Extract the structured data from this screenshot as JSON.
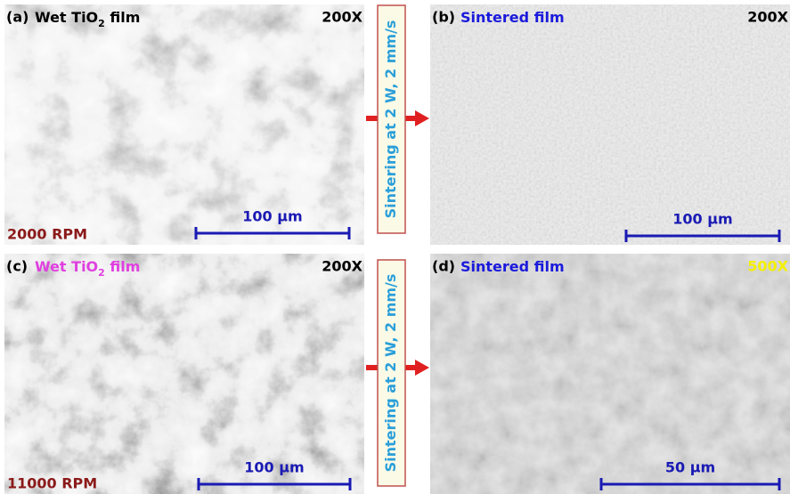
{
  "panels": [
    {
      "label": "(a)",
      "title": [
        "Wet TiO",
        "2",
        " film"
      ],
      "title_color": "#000000",
      "magnification": "200X",
      "magnification_color": "#000000",
      "rpm": "2000 RPM",
      "scale_bar": "100 μm"
    },
    {
      "label": "(b)",
      "title": [
        "Sintered film"
      ],
      "title_color": "#1a1adc",
      "magnification": "200X",
      "magnification_color": "#000000",
      "scale_bar": "100 μm"
    },
    {
      "label": "(c)",
      "title": [
        "Wet TiO",
        "2",
        " film"
      ],
      "title_color": "#e040e0",
      "magnification": "200X",
      "magnification_color": "#000000",
      "rpm": "11000 RPM",
      "scale_bar": "100 μm"
    },
    {
      "label": "(d)",
      "title": [
        "Sintered film"
      ],
      "title_color": "#1a1adc",
      "magnification": "500X",
      "magnification_color": "#f5f000",
      "scale_bar": "50 μm"
    }
  ],
  "process_labels": [
    "Sintering at 2 W, 2 mm/s",
    "Sintering at 2 W, 2 mm/s"
  ]
}
